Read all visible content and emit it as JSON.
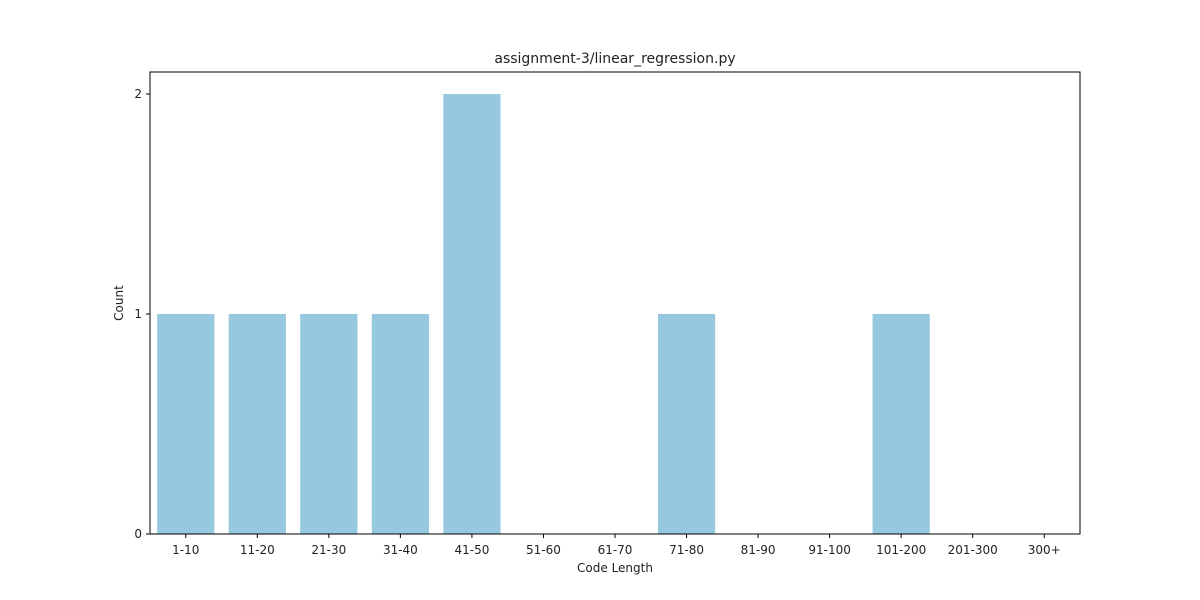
{
  "chart_data": {
    "type": "bar",
    "title": "assignment-3/linear_regression.py",
    "xlabel": "Code Length",
    "ylabel": "Count",
    "categories": [
      "1-10",
      "11-20",
      "21-30",
      "31-40",
      "41-50",
      "51-60",
      "61-70",
      "71-80",
      "81-90",
      "91-100",
      "101-200",
      "201-300",
      "300+"
    ],
    "values": [
      1,
      1,
      1,
      1,
      2,
      0,
      0,
      1,
      0,
      0,
      1,
      0,
      0
    ],
    "ylim": [
      0,
      2.1
    ],
    "yticks": [
      0,
      1,
      2
    ],
    "grid": false,
    "bar_color": "#96c9df"
  }
}
